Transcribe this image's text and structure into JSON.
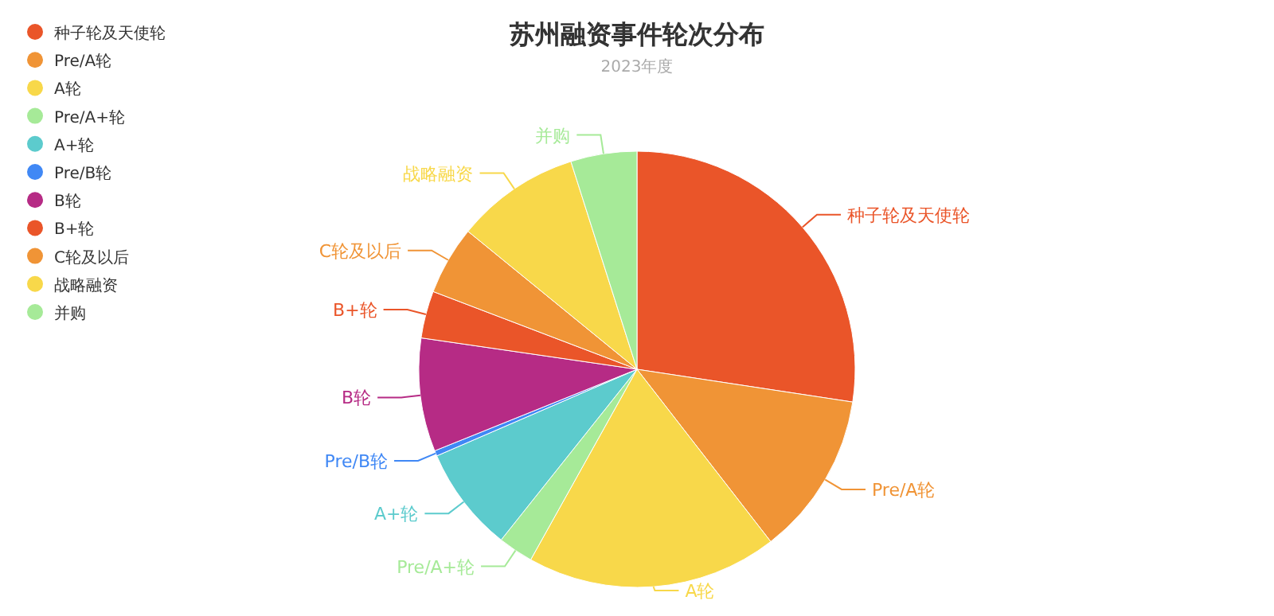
{
  "chart_data": {
    "type": "pie",
    "title": "苏州融资事件轮次分布",
    "subtitle": "2023年度",
    "categories": [
      "种子轮及天使轮",
      "Pre/A轮",
      "A轮",
      "Pre/A+轮",
      "A+轮",
      "Pre/B轮",
      "B轮",
      "B+轮",
      "C轮及以后",
      "战略融资",
      "并购"
    ],
    "values": [
      27.4,
      12.1,
      18.6,
      2.6,
      7.8,
      0.4,
      8.4,
      3.5,
      5.1,
      9.2,
      4.9
    ],
    "colors": [
      "#ea5529",
      "#f09436",
      "#f8d84a",
      "#a6ea98",
      "#5ccbcd",
      "#4088f5",
      "#b62b85",
      "#ea5529",
      "#f09436",
      "#f8d84a",
      "#a6ea98"
    ],
    "legend": "top left"
  }
}
